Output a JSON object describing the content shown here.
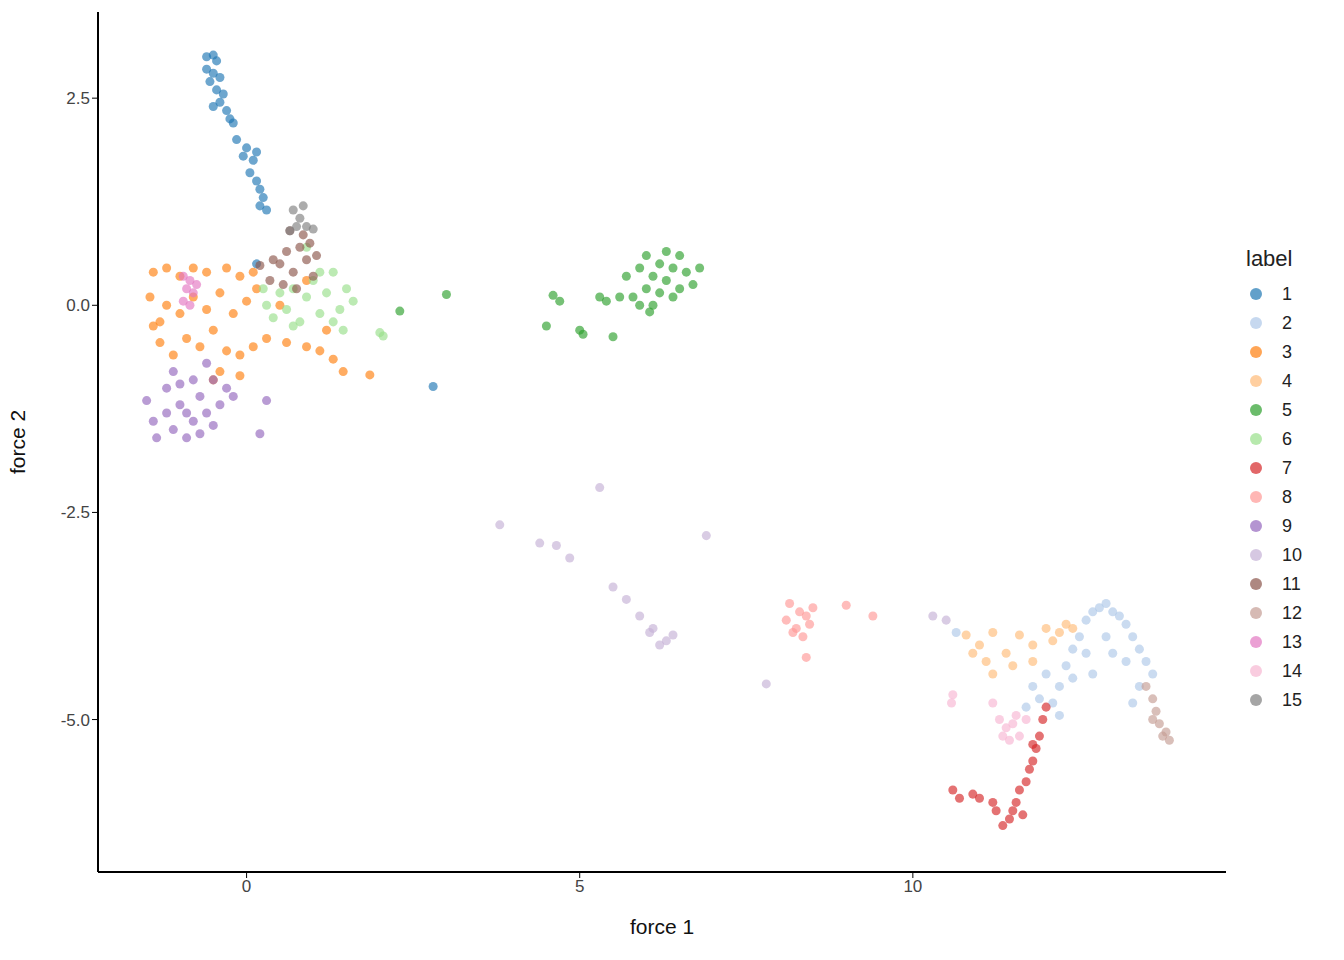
{
  "chart_data": {
    "type": "scatter",
    "x_label": "force 1",
    "y_label": "force 2",
    "legend_title": "label",
    "legend": "right",
    "grid": false,
    "xlim": [
      -2.23,
      14.7
    ],
    "xticks": [
      0,
      5,
      10
    ],
    "ylim": [
      -6.84,
      3.54
    ],
    "yticks": [
      {
        "value": -5,
        "label": "-5.0"
      },
      -2.5,
      {
        "value": 0,
        "label": "0.0"
      },
      2.5
    ],
    "series": [
      {
        "name": "1",
        "color": "#1f77b4",
        "x": [
          -0.6,
          -0.5,
          -0.45,
          -0.6,
          -0.5,
          -0.4,
          -0.55,
          -0.45,
          -0.35,
          -0.4,
          -0.3,
          -0.25,
          -0.2,
          -0.5,
          -0.15,
          0,
          -0.05,
          0.1,
          0.15,
          0.05,
          0.15,
          0.2,
          0.25,
          0.2,
          0.3,
          0.15,
          2.8
        ],
        "y": [
          3.0,
          3.02,
          2.95,
          2.85,
          2.8,
          2.75,
          2.7,
          2.6,
          2.55,
          2.45,
          2.35,
          2.25,
          2.2,
          2.4,
          2.0,
          1.9,
          1.8,
          1.75,
          1.85,
          1.6,
          1.5,
          1.4,
          1.3,
          1.2,
          1.15,
          0.5,
          -0.98
        ]
      },
      {
        "name": "2",
        "color": "#aec7e8",
        "x": [
          11.7,
          11.9,
          12.1,
          12.2,
          11.8,
          12.0,
          12.3,
          12.4,
          12.5,
          12.6,
          12.7,
          12.8,
          12.9,
          13.0,
          13.1,
          13.2,
          13.3,
          13.4,
          13.5,
          13.6,
          13.4,
          12.6,
          12.9,
          13.2,
          12.7,
          13.0,
          12.4,
          12.2,
          13.3,
          10.65
        ],
        "y": [
          -4.85,
          -4.75,
          -4.8,
          -4.6,
          -4.6,
          -4.45,
          -4.35,
          -4.15,
          -4.0,
          -3.8,
          -3.7,
          -3.65,
          -3.6,
          -3.7,
          -3.75,
          -3.85,
          -4.0,
          -4.15,
          -4.3,
          -4.45,
          -4.6,
          -4.2,
          -4.0,
          -4.3,
          -4.45,
          -4.2,
          -4.5,
          -4.95,
          -4.8,
          -3.95
        ]
      },
      {
        "name": "3",
        "color": "#ff7f0e",
        "x": [
          -1.4,
          -1.2,
          -1.0,
          -0.8,
          -0.6,
          -0.3,
          -0.1,
          0.1,
          -1.45,
          -1.3,
          -1.2,
          -1.0,
          -0.8,
          -0.6,
          -0.4,
          -0.2,
          0.0,
          0.15,
          -1.3,
          -1.1,
          -0.9,
          -0.7,
          -0.5,
          -0.3,
          -0.1,
          0.1,
          -0.1,
          -0.4,
          0.3,
          0.6,
          0.9,
          1.1,
          1.3,
          1.45,
          1.85,
          1.2,
          0.9,
          0.5,
          -0.5,
          -1.4
        ],
        "y": [
          0.4,
          0.45,
          0.35,
          0.45,
          0.4,
          0.45,
          0.35,
          0.4,
          0.1,
          -0.2,
          0.0,
          -0.1,
          0.1,
          -0.05,
          0.15,
          -0.1,
          0.05,
          0.2,
          -0.45,
          -0.6,
          -0.4,
          -0.5,
          -0.3,
          -0.55,
          -0.6,
          -0.5,
          -0.85,
          -0.8,
          -0.4,
          -0.45,
          -0.5,
          -0.55,
          -0.65,
          -0.8,
          -0.84,
          -0.3,
          0.3,
          0.0,
          -0.9,
          -0.25
        ]
      },
      {
        "name": "4",
        "color": "#ffbb78",
        "x": [
          10.8,
          11.0,
          11.2,
          11.4,
          11.6,
          11.8,
          12.0,
          12.2,
          12.3,
          11.1,
          11.5,
          11.2,
          11.8,
          10.9,
          12.1,
          12.4
        ],
        "y": [
          -3.98,
          -4.1,
          -3.95,
          -4.2,
          -3.98,
          -4.1,
          -3.9,
          -3.95,
          -3.85,
          -4.3,
          -4.35,
          -4.45,
          -4.3,
          -4.2,
          -4.05,
          -3.9
        ]
      },
      {
        "name": "5",
        "color": "#2ca02c",
        "x": [
          5.7,
          5.8,
          5.9,
          6.0,
          6.1,
          6.2,
          6.3,
          6.4,
          6.5,
          6.6,
          6.7,
          6.8,
          6.0,
          6.3,
          6.1,
          6.4,
          5.9,
          6.2,
          6.5,
          5.6,
          6.05,
          5.3,
          5.4,
          4.6,
          4.7,
          4.5,
          5.0,
          5.05,
          5.5,
          2.3,
          3.0
        ],
        "y": [
          0.35,
          0.1,
          0.45,
          0.2,
          0.0,
          0.5,
          0.3,
          0.1,
          0.6,
          0.4,
          0.25,
          0.45,
          0.6,
          0.65,
          0.35,
          0.45,
          0.0,
          0.15,
          0.2,
          0.1,
          -0.08,
          0.1,
          0.05,
          0.12,
          0.05,
          -0.25,
          -0.3,
          -0.35,
          -0.38,
          -0.07,
          0.13
        ]
      },
      {
        "name": "6",
        "color": "#98df8a",
        "x": [
          0.3,
          0.4,
          0.5,
          0.6,
          0.7,
          0.8,
          0.9,
          1.0,
          1.1,
          1.2,
          1.3,
          1.4,
          1.5,
          1.6,
          1.1,
          0.7,
          1.3,
          0.9,
          1.45,
          2.0,
          2.05,
          0.25
        ],
        "y": [
          0.0,
          -0.15,
          0.15,
          -0.05,
          0.2,
          -0.2,
          0.1,
          0.3,
          -0.1,
          0.15,
          0.4,
          -0.05,
          0.2,
          0.05,
          0.4,
          -0.25,
          -0.2,
          0.7,
          -0.3,
          -0.33,
          -0.37,
          0.2
        ]
      },
      {
        "name": "7",
        "color": "#d62728",
        "x": [
          12.0,
          11.95,
          11.9,
          11.85,
          11.8,
          11.75,
          11.7,
          11.6,
          11.55,
          11.5,
          11.45,
          11.35,
          11.25,
          11.2,
          11.0,
          10.9,
          10.7,
          10.6,
          11.65,
          11.8
        ],
        "y": [
          -4.85,
          -5.0,
          -5.2,
          -5.35,
          -5.5,
          -5.6,
          -5.75,
          -5.85,
          -6.0,
          -6.1,
          -6.2,
          -6.28,
          -6.1,
          -6.0,
          -5.95,
          -5.9,
          -5.95,
          -5.85,
          -6.15,
          -5.3
        ]
      },
      {
        "name": "8",
        "color": "#ff9896",
        "x": [
          8.15,
          8.3,
          8.1,
          8.25,
          8.4,
          8.5,
          8.35,
          8.2,
          8.45,
          8.4,
          9.0,
          9.4
        ],
        "y": [
          -3.6,
          -3.7,
          -3.8,
          -3.9,
          -3.75,
          -3.65,
          -4.0,
          -3.95,
          -3.85,
          -4.25,
          -3.62,
          -3.75
        ]
      },
      {
        "name": "9",
        "color": "#9467bd",
        "x": [
          -1.5,
          -1.4,
          -1.35,
          -1.2,
          -1.1,
          -1.0,
          -0.9,
          -0.8,
          -0.7,
          -0.6,
          -0.5,
          -0.4,
          -0.3,
          -0.6,
          -0.8,
          -1.0,
          -1.2,
          -0.9,
          -0.5,
          -0.2,
          0.3,
          0.2,
          -1.1,
          -0.7
        ],
        "y": [
          -1.15,
          -1.4,
          -1.6,
          -1.3,
          -1.5,
          -1.2,
          -1.6,
          -1.4,
          -1.1,
          -1.3,
          -0.9,
          -1.2,
          -1.0,
          -0.7,
          -0.9,
          -0.95,
          -1.0,
          -1.3,
          -1.45,
          -1.1,
          -1.15,
          -1.55,
          -0.8,
          -1.55
        ]
      },
      {
        "name": "10",
        "color": "#c5b0d5",
        "x": [
          3.8,
          4.4,
          4.65,
          4.85,
          5.3,
          6.9,
          5.5,
          5.7,
          5.9,
          6.1,
          6.3,
          6.4,
          6.2,
          6.05,
          7.8,
          10.3,
          10.5
        ],
        "y": [
          -2.65,
          -2.87,
          -2.9,
          -3.05,
          -2.2,
          -2.78,
          -3.4,
          -3.55,
          -3.75,
          -3.9,
          -4.05,
          -3.98,
          -4.1,
          -3.95,
          -4.57,
          -3.75,
          -3.8
        ]
      },
      {
        "name": "11",
        "color": "#8c564b",
        "x": [
          0.2,
          0.35,
          0.5,
          0.6,
          0.7,
          0.8,
          0.9,
          1.0,
          1.05,
          0.55,
          0.75,
          0.85,
          0.4,
          0.65,
          0.95
        ],
        "y": [
          0.48,
          0.3,
          0.5,
          0.65,
          0.4,
          0.7,
          0.55,
          0.35,
          0.6,
          0.25,
          0.2,
          0.85,
          0.55,
          0.9,
          0.75
        ]
      },
      {
        "name": "12",
        "color": "#c49c94",
        "x": [
          13.5,
          13.6,
          13.65,
          13.7,
          13.8,
          13.85,
          13.75,
          13.6
        ],
        "y": [
          -4.6,
          -4.75,
          -4.9,
          -5.05,
          -5.15,
          -5.25,
          -5.2,
          -5.0
        ]
      },
      {
        "name": "13",
        "color": "#e377c2",
        "x": [
          -0.95,
          -0.85,
          -0.9,
          -0.8,
          -0.95,
          -0.85,
          -0.75
        ],
        "y": [
          0.35,
          0.3,
          0.2,
          0.15,
          0.05,
          0.0,
          0.25
        ]
      },
      {
        "name": "14",
        "color": "#f7b6d2",
        "x": [
          11.3,
          11.4,
          11.5,
          11.6,
          11.45,
          11.7,
          11.35,
          11.55,
          10.6,
          10.58,
          11.2
        ],
        "y": [
          -5.0,
          -5.1,
          -5.05,
          -5.2,
          -5.25,
          -5.0,
          -5.2,
          -4.95,
          -4.7,
          -4.8,
          -4.8
        ]
      },
      {
        "name": "15",
        "color": "#7f7f7f",
        "x": [
          0.7,
          0.85,
          0.75,
          0.9,
          1.0,
          0.65,
          0.8
        ],
        "y": [
          1.15,
          1.2,
          0.95,
          0.95,
          0.92,
          0.9,
          1.05
        ]
      }
    ]
  }
}
